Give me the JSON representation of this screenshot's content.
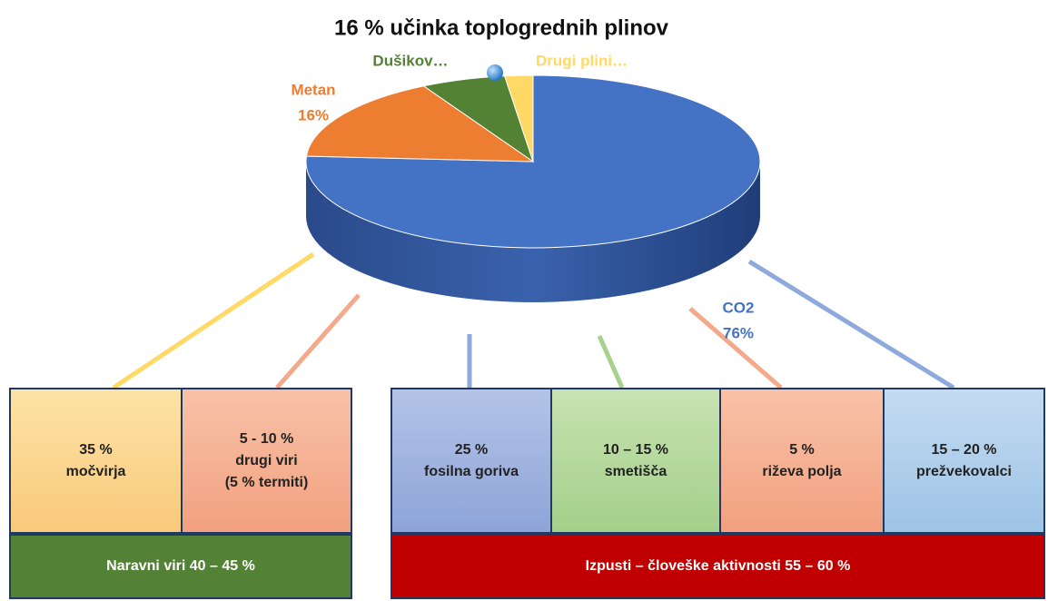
{
  "chart_data": {
    "type": "pie",
    "title": "16 % učinka toplogrednih plinov",
    "categories": [
      "CO2",
      "Metan",
      "Dušikov…",
      "Drugi plini…"
    ],
    "values": [
      76,
      16,
      6,
      2
    ],
    "value_labels": [
      "76%",
      "16%",
      null,
      null
    ],
    "colors": [
      "#4472c4",
      "#ed7d31",
      "#548235",
      "#ffd966"
    ]
  },
  "boxes": [
    {
      "lines": [
        "35 %",
        "močvirja"
      ]
    },
    {
      "lines": [
        "5 - 10 %",
        "drugi viri",
        "(5 % termiti)"
      ]
    },
    {
      "lines": [
        "25 %",
        "fosilna goriva"
      ]
    },
    {
      "lines": [
        "10 – 15 %",
        "smetišča"
      ]
    },
    {
      "lines": [
        "5 %",
        "riževa polja"
      ]
    },
    {
      "lines": [
        "15 – 20 %",
        "prežvekovalci"
      ]
    }
  ],
  "groups": [
    {
      "label": "Naravni viri 40 – 45 %"
    },
    {
      "label": "Izpusti – človeške aktivnosti 55 – 60 %"
    }
  ]
}
